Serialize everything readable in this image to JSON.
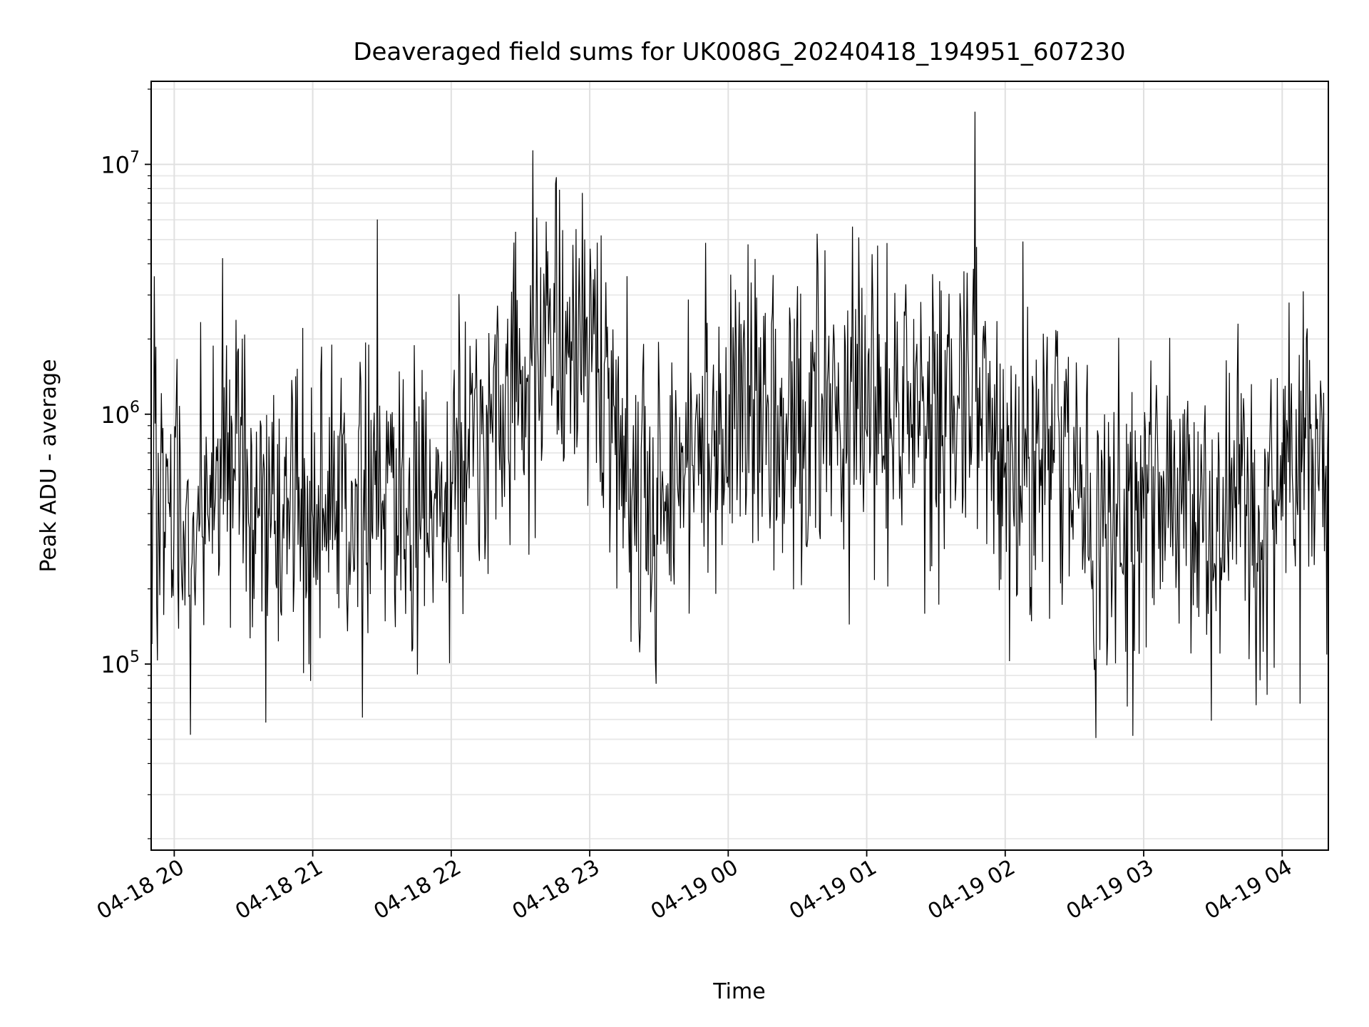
{
  "chart_data": {
    "type": "line",
    "title": "Deaveraged field sums for UK008G_20240418_194951_607230",
    "xlabel": "Time",
    "ylabel": "Peak ADU - average",
    "yscale": "log",
    "ylim": [
      18000,
      21500000
    ],
    "xlim": [
      "2024-04-18T19:50:00",
      "2024-04-19T04:20:00"
    ],
    "grid": true,
    "legend": "none",
    "line_color": "#000000",
    "x_ticks": [
      "04-18 20",
      "04-18 21",
      "04-18 22",
      "04-18 23",
      "04-19 00",
      "04-19 01",
      "04-19 02",
      "04-19 03",
      "04-19 04"
    ],
    "y_ticks": [
      {
        "value": 100000,
        "base": "10",
        "exp": "5"
      },
      {
        "value": 1000000,
        "base": "10",
        "exp": "6"
      },
      {
        "value": 10000000,
        "base": "10",
        "exp": "7"
      }
    ],
    "series": [
      {
        "x": [
          "2024-04-18T19:50:00",
          "2024-04-18T20:00:00",
          "2024-04-18T20:10:00",
          "2024-04-18T20:20:00",
          "2024-04-18T20:30:00",
          "2024-04-18T20:40:00",
          "2024-04-18T20:50:00",
          "2024-04-18T21:00:00",
          "2024-04-18T21:10:00",
          "2024-04-18T21:20:00",
          "2024-04-18T21:30:00",
          "2024-04-18T21:40:00",
          "2024-04-18T21:50:00",
          "2024-04-18T22:00:00",
          "2024-04-18T22:10:00",
          "2024-04-18T22:20:00",
          "2024-04-18T22:30:00",
          "2024-04-18T22:40:00",
          "2024-04-18T22:50:00",
          "2024-04-18T23:00:00",
          "2024-04-18T23:10:00",
          "2024-04-18T23:20:00",
          "2024-04-18T23:30:00",
          "2024-04-18T23:40:00",
          "2024-04-18T23:50:00",
          "2024-04-19T00:00:00",
          "2024-04-19T00:10:00",
          "2024-04-19T00:20:00",
          "2024-04-19T00:30:00",
          "2024-04-19T00:40:00",
          "2024-04-19T00:50:00",
          "2024-04-19T01:00:00",
          "2024-04-19T01:10:00",
          "2024-04-19T01:20:00",
          "2024-04-19T01:30:00",
          "2024-04-19T01:40:00",
          "2024-04-19T01:50:00",
          "2024-04-19T02:00:00",
          "2024-04-19T02:10:00",
          "2024-04-19T02:20:00",
          "2024-04-19T02:30:00",
          "2024-04-19T02:40:00",
          "2024-04-19T02:50:00",
          "2024-04-19T03:00:00",
          "2024-04-19T03:10:00",
          "2024-04-19T03:20:00",
          "2024-04-19T03:30:00",
          "2024-04-19T03:40:00",
          "2024-04-19T03:50:00",
          "2024-04-19T04:00:00",
          "2024-04-19T04:10:00",
          "2024-04-19T04:20:00"
        ],
        "values": [
          800000,
          400000,
          300000,
          700000,
          600000,
          300000,
          400000,
          450000,
          400000,
          350000,
          450000,
          400000,
          350000,
          500000,
          1000000,
          1200000,
          1200000,
          2000000,
          2200000,
          1500000,
          900000,
          500000,
          400000,
          600000,
          900000,
          1000000,
          1000000,
          1100000,
          1000000,
          1000000,
          900000,
          1100000,
          1000000,
          900000,
          1000000,
          1000000,
          1000000,
          700000,
          800000,
          700000,
          500000,
          300000,
          400000,
          500000,
          600000,
          400000,
          300000,
          600000,
          400000,
          700000,
          800000,
          600000
        ]
      }
    ]
  }
}
